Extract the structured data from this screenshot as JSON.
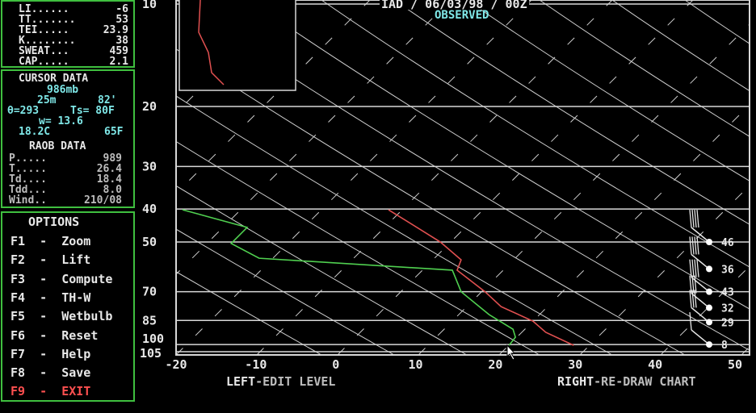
{
  "indices": [
    {
      "label": "LI......",
      "value": "-6"
    },
    {
      "label": "TT.......",
      "value": "53"
    },
    {
      "label": "TEI.....",
      "value": "23.9"
    },
    {
      "label": "K........",
      "value": "38"
    },
    {
      "label": "SWEAT...",
      "value": "459"
    },
    {
      "label": "CAP.....",
      "value": "2.1"
    }
  ],
  "cursor": {
    "title": "CURSOR DATA",
    "pressure": "986mb",
    "height": "25m",
    "height_ft": "82'",
    "theta": "θ=293",
    "ts": "Ts= 80F",
    "w": "w= 13.6",
    "temp_c": "18.2C",
    "temp_f": "65F"
  },
  "raob": {
    "title": "RAOB DATA",
    "rows": [
      {
        "label": "P.....",
        "value": "989"
      },
      {
        "label": "T.....",
        "value": "26.4"
      },
      {
        "label": "Td....",
        "value": "18.4"
      },
      {
        "label": "Tdd...",
        "value": "8.0"
      },
      {
        "label": "Wind..",
        "value": "210/08"
      }
    ]
  },
  "options": {
    "title": "OPTIONS",
    "items": [
      {
        "key": "F1",
        "label": "Zoom"
      },
      {
        "key": "F2",
        "label": "Lift"
      },
      {
        "key": "F3",
        "label": "Compute"
      },
      {
        "key": "F4",
        "label": "TH-W"
      },
      {
        "key": "F5",
        "label": "Wetbulb"
      },
      {
        "key": "F6",
        "label": "Reset"
      },
      {
        "key": "F7",
        "label": "Help"
      },
      {
        "key": "F8",
        "label": "Save"
      },
      {
        "key": "F9",
        "label": "EXIT"
      }
    ]
  },
  "header": {
    "title": "IAD / 06/03/98 / 00Z",
    "subtitle": "OBSERVED"
  },
  "footer": {
    "left_key": "LEFT",
    "left_action": "-EDIT LEVEL",
    "right_key": "RIGHT",
    "right_action": "-RE-DRAW CHART"
  },
  "colors": {
    "temperature": "#e05050",
    "dewpoint": "#50d050",
    "panel_border": "#3fbf3f",
    "cursor_text": "#7fe8e8"
  },
  "chart_data": {
    "type": "line",
    "xlim": [
      -20,
      50
    ],
    "x_ticks": [
      "-20",
      "-10",
      "0",
      "10",
      "20",
      "30",
      "40",
      "50"
    ],
    "y_scale": "log",
    "y_levels": [
      "10",
      "20",
      "30",
      "40",
      "50",
      "70",
      "85",
      "100",
      "105"
    ],
    "series": [
      {
        "key": "temperature",
        "points": [
          [
            6.6,
            40.2
          ],
          [
            13.1,
            50
          ],
          [
            15.7,
            56.4
          ],
          [
            15.2,
            60.5
          ],
          [
            18.7,
            70
          ],
          [
            20.7,
            77.4
          ],
          [
            24.7,
            85.4
          ],
          [
            26.3,
            92.1
          ],
          [
            29.8,
            100.6
          ]
        ]
      },
      {
        "key": "dewpoint",
        "points": [
          [
            -19.2,
            40.2
          ],
          [
            -11.1,
            45.3
          ],
          [
            -13.1,
            50.5
          ],
          [
            -9.6,
            55.8
          ],
          [
            14.6,
            60.5
          ],
          [
            15.7,
            70
          ],
          [
            19.2,
            81.7
          ],
          [
            22.2,
            90.2
          ],
          [
            22.5,
            95.2
          ],
          [
            21.7,
            100.6
          ]
        ]
      }
    ],
    "wind_speeds": [
      {
        "p": 50,
        "speed": "46"
      },
      {
        "p": 60,
        "speed": "36"
      },
      {
        "p": 70,
        "speed": "43"
      },
      {
        "p": 78,
        "speed": "32"
      },
      {
        "p": 86,
        "speed": "29"
      },
      {
        "p": 100,
        "speed": "8"
      }
    ]
  }
}
